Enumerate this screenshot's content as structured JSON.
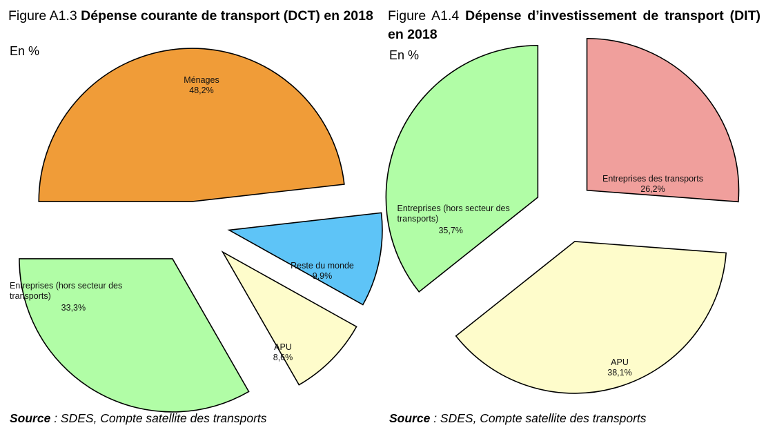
{
  "chart_data": [
    {
      "type": "pie",
      "figure_number": "Figure A1.3",
      "title": "Dépense courante de transport (DCT) en 2018",
      "unit": "En %",
      "slices": [
        {
          "label": "Ménages",
          "value": 48.2,
          "value_text": "48,2%",
          "color": "#f09c38"
        },
        {
          "label": "Reste du monde",
          "value": 9.9,
          "value_text": "9,9%",
          "color": "#5ec4f7"
        },
        {
          "label": "APU",
          "value": 8.6,
          "value_text": "8,6%",
          "color": "#fefccb"
        },
        {
          "label": "Entreprises (hors secteur des transports)",
          "value": 33.3,
          "value_text": "33,3%",
          "color": "#b1fda6"
        }
      ],
      "source_label": "Source",
      "source_text": " : SDES, Compte satellite des transports"
    },
    {
      "type": "pie",
      "figure_number": "Figure A1.4",
      "title": "Dépense d’investissement de transport (DIT) en 2018",
      "unit": "En %",
      "slices": [
        {
          "label": "Entreprises des transports",
          "value": 26.2,
          "value_text": "26,2%",
          "color": "#f09f9c"
        },
        {
          "label": "APU",
          "value": 38.1,
          "value_text": "38,1%",
          "color": "#fefccb"
        },
        {
          "label": "Entreprises (hors secteur des transports)",
          "value": 35.7,
          "value_text": "35,7%",
          "color": "#b1fda6"
        }
      ],
      "source_label": "Source",
      "source_text": " : SDES, Compte satellite des transports"
    }
  ]
}
